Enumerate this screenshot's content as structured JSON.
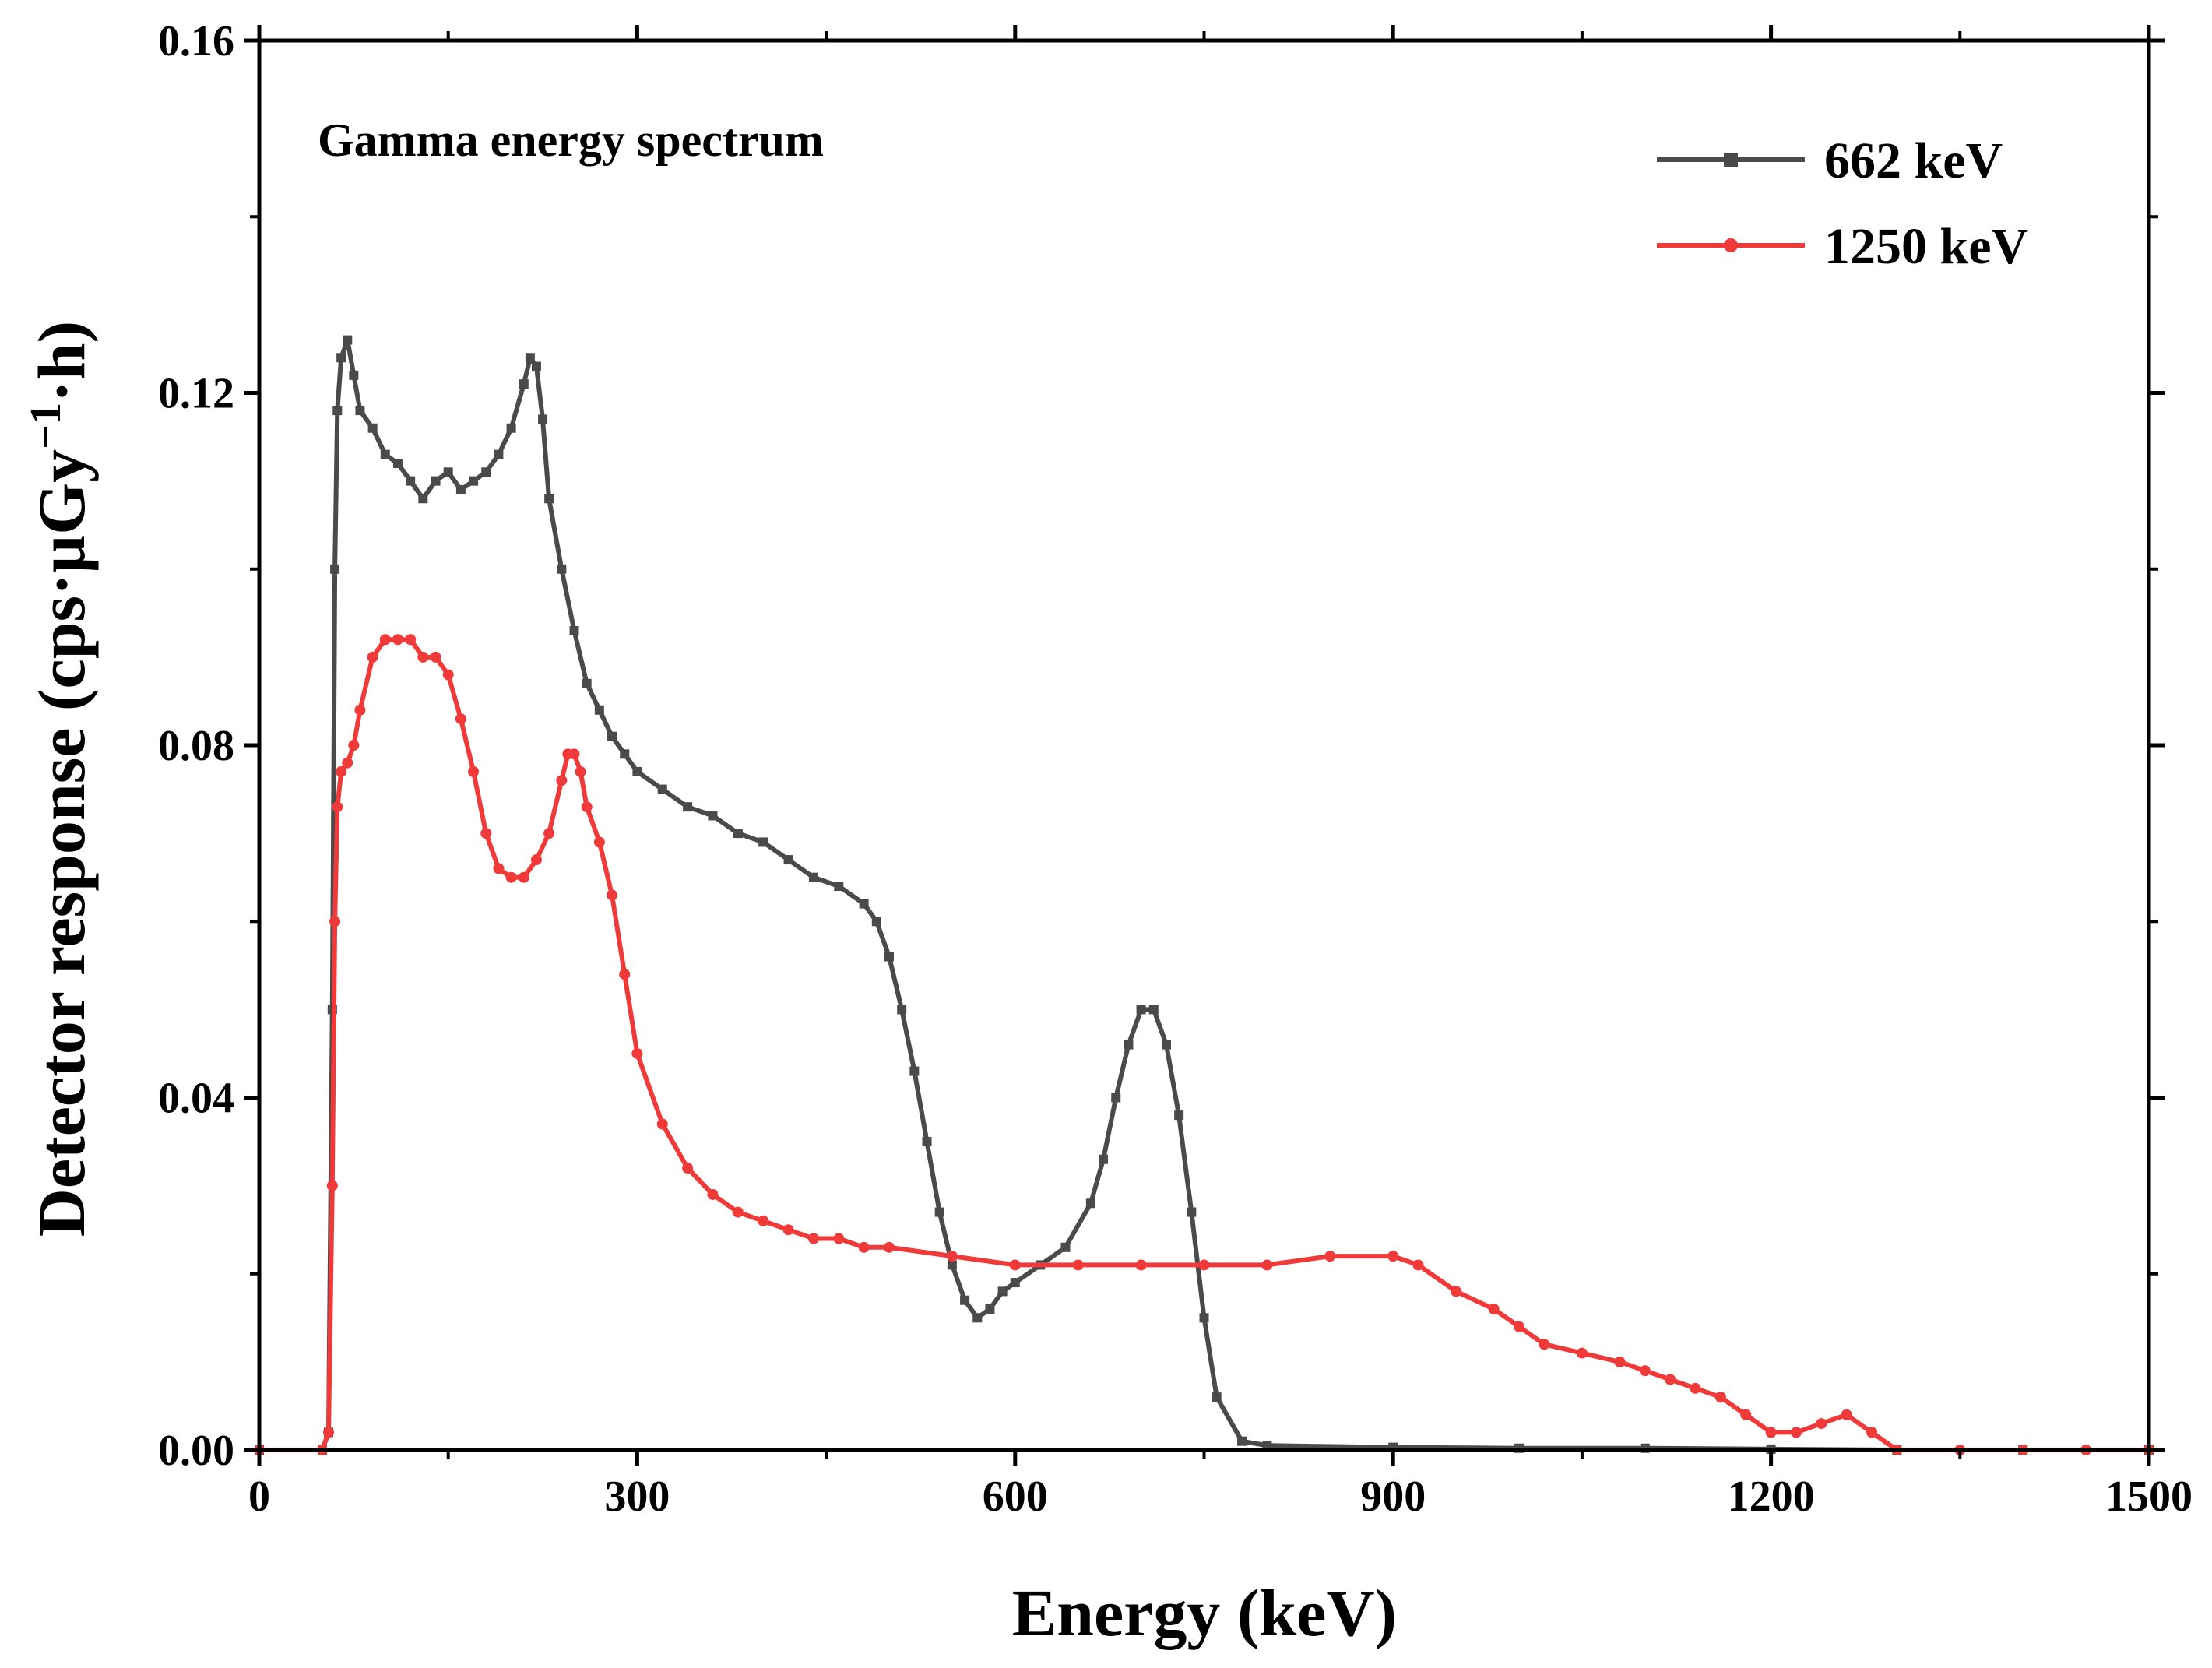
{
  "chart_data": {
    "type": "line",
    "title": "",
    "annotation": "Gamma energy spectrum",
    "xlabel": "Energy (keV)",
    "ylabel_main": "Detector response (cps·µGy",
    "ylabel_sup": "−1",
    "ylabel_tail": "·h)",
    "xlim": [
      0,
      1500
    ],
    "ylim": [
      0,
      0.16
    ],
    "x_ticks": [
      0,
      300,
      600,
      900,
      1200,
      1500
    ],
    "x_tick_labels": [
      "0",
      "300",
      "600",
      "900",
      "1200",
      "1500"
    ],
    "y_ticks": [
      0,
      0.04,
      0.08,
      0.12,
      0.16
    ],
    "y_tick_labels": [
      "0.00",
      "0.04",
      "0.08",
      "0.12",
      "0.16"
    ],
    "legend_position": "top-right",
    "series": [
      {
        "name": "662 keV",
        "color": "#4a4a4a",
        "marker": "square",
        "x": [
          0,
          50,
          55,
          58,
          60,
          62,
          65,
          70,
          75,
          80,
          90,
          100,
          110,
          120,
          130,
          140,
          150,
          160,
          170,
          180,
          190,
          200,
          210,
          215,
          220,
          225,
          230,
          240,
          250,
          260,
          270,
          280,
          290,
          300,
          320,
          340,
          360,
          380,
          400,
          420,
          440,
          460,
          480,
          490,
          500,
          510,
          520,
          530,
          540,
          550,
          560,
          570,
          580,
          590,
          600,
          620,
          640,
          660,
          670,
          680,
          690,
          700,
          710,
          720,
          730,
          740,
          750,
          760,
          780,
          800,
          900,
          1000,
          1100,
          1200,
          1300,
          1400,
          1500
        ],
        "y": [
          0,
          0,
          0.002,
          0.05,
          0.1,
          0.118,
          0.124,
          0.126,
          0.122,
          0.118,
          0.116,
          0.113,
          0.112,
          0.11,
          0.108,
          0.11,
          0.111,
          0.109,
          0.11,
          0.111,
          0.113,
          0.116,
          0.121,
          0.124,
          0.123,
          0.117,
          0.108,
          0.1,
          0.093,
          0.087,
          0.084,
          0.081,
          0.079,
          0.077,
          0.075,
          0.073,
          0.072,
          0.07,
          0.069,
          0.067,
          0.065,
          0.064,
          0.062,
          0.06,
          0.056,
          0.05,
          0.043,
          0.035,
          0.027,
          0.021,
          0.017,
          0.015,
          0.016,
          0.018,
          0.019,
          0.021,
          0.023,
          0.028,
          0.033,
          0.04,
          0.046,
          0.05,
          0.05,
          0.046,
          0.038,
          0.027,
          0.015,
          0.006,
          0.001,
          0.0005,
          0.0003,
          0.0002,
          0.0002,
          0.0001,
          0,
          0,
          0
        ]
      },
      {
        "name": "1250 keV",
        "color": "#f03a3a",
        "marker": "circle",
        "x": [
          0,
          50,
          55,
          58,
          60,
          62,
          65,
          70,
          75,
          80,
          90,
          100,
          110,
          120,
          130,
          140,
          150,
          160,
          170,
          180,
          190,
          200,
          210,
          220,
          230,
          240,
          245,
          250,
          255,
          260,
          270,
          280,
          290,
          300,
          320,
          340,
          360,
          380,
          400,
          420,
          440,
          460,
          480,
          500,
          550,
          600,
          650,
          700,
          750,
          800,
          850,
          900,
          920,
          950,
          980,
          1000,
          1020,
          1050,
          1080,
          1100,
          1120,
          1140,
          1160,
          1180,
          1200,
          1220,
          1240,
          1260,
          1280,
          1300,
          1350,
          1400,
          1450,
          1500
        ],
        "y": [
          0,
          0,
          0.002,
          0.03,
          0.06,
          0.073,
          0.077,
          0.078,
          0.08,
          0.084,
          0.09,
          0.092,
          0.092,
          0.092,
          0.09,
          0.09,
          0.088,
          0.083,
          0.077,
          0.07,
          0.066,
          0.065,
          0.065,
          0.067,
          0.07,
          0.076,
          0.079,
          0.079,
          0.077,
          0.073,
          0.069,
          0.063,
          0.054,
          0.045,
          0.037,
          0.032,
          0.029,
          0.027,
          0.026,
          0.025,
          0.024,
          0.024,
          0.023,
          0.023,
          0.022,
          0.021,
          0.021,
          0.021,
          0.021,
          0.021,
          0.022,
          0.022,
          0.021,
          0.018,
          0.016,
          0.014,
          0.012,
          0.011,
          0.01,
          0.009,
          0.008,
          0.007,
          0.006,
          0.004,
          0.002,
          0.002,
          0.003,
          0.004,
          0.002,
          0,
          0,
          0,
          0,
          0
        ]
      }
    ]
  }
}
